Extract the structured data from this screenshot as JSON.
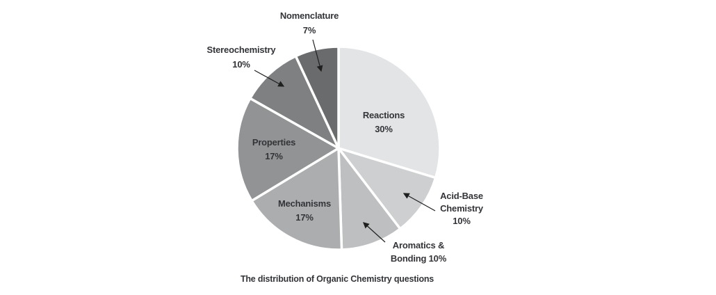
{
  "chart_data": {
    "type": "pie",
    "title": "The distribution of Organic Chemistry questions",
    "start_angle_deg": 0,
    "direction": "clockwise",
    "legend": "none",
    "text_color": "#333438",
    "slice_gap_color": "#ffffff",
    "slices": [
      {
        "id": "reactions",
        "name": "Reactions",
        "value": 30,
        "pct_text": "30%",
        "color": "#e3e4e5",
        "label_position": "inside",
        "label_lines": [
          "Reactions",
          "30%"
        ]
      },
      {
        "id": "acid-base-chemistry",
        "name": "Acid-Base Chemistry",
        "value": 10,
        "pct_text": "10%",
        "color": "#cdcfd1",
        "label_position": "outside",
        "label_lines": [
          "Acid-Base",
          "Chemistry",
          "10%"
        ]
      },
      {
        "id": "aromatics-bonding",
        "name": "Aromatics & Bonding",
        "value": 10,
        "pct_text": "10%",
        "color": "#bdbfc0",
        "label_position": "outside",
        "label_lines": [
          "Aromatics &",
          "Bonding 10%"
        ]
      },
      {
        "id": "mechanisms",
        "name": "Mechanisms",
        "value": 17,
        "pct_text": "17%",
        "color": "#abadaf",
        "label_position": "inside",
        "label_lines": [
          "Mechanisms",
          "17%"
        ]
      },
      {
        "id": "properties",
        "name": "Properties",
        "value": 17,
        "pct_text": "17%",
        "color": "#919394",
        "label_position": "inside",
        "label_lines": [
          "Properties",
          "17%"
        ]
      },
      {
        "id": "stereochemistry",
        "name": "Stereochemistry",
        "value": 10,
        "pct_text": "10%",
        "color": "#7e8082",
        "label_position": "outside",
        "label_lines": [
          "Stereochemistry",
          "10%"
        ]
      },
      {
        "id": "nomenclature",
        "name": "Nomenclature",
        "value": 7,
        "pct_text": "7%",
        "color": "#696b6d",
        "label_position": "outside",
        "label_lines": [
          "Nomenclature",
          "7%"
        ]
      }
    ]
  },
  "caption": "The distribution of Organic Chemistry questions"
}
